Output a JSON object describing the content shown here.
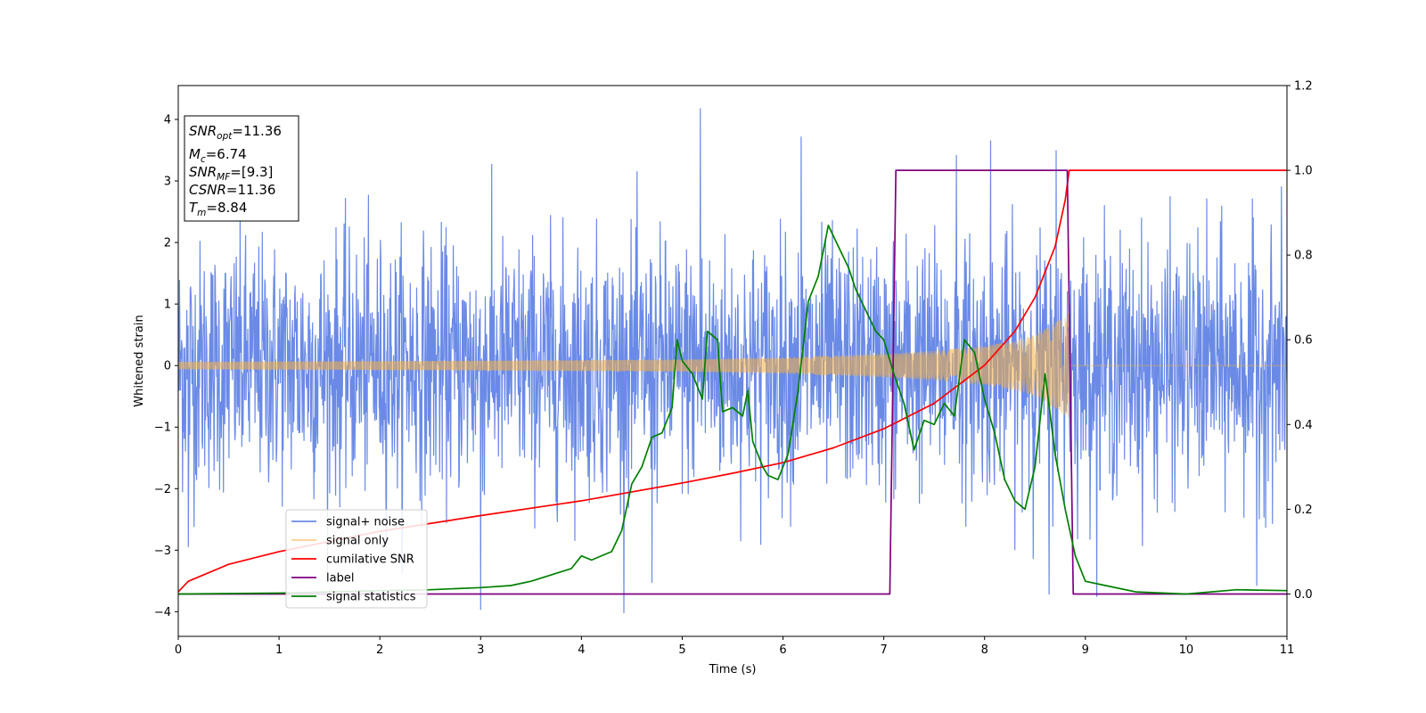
{
  "chart_data": {
    "type": "line",
    "xlabel": "Time (s)",
    "ylabel": "Whitened strain",
    "xlim": [
      0,
      11
    ],
    "ylim": [
      -4.4,
      4.55
    ],
    "ylim_right": [
      -0.1,
      1.2
    ],
    "x_ticks": [
      0,
      1,
      2,
      3,
      4,
      5,
      6,
      7,
      8,
      9,
      10,
      11
    ],
    "y_ticks": [
      -4,
      -3,
      -2,
      -1,
      0,
      1,
      2,
      3,
      4
    ],
    "y_ticks_right": [
      "0.0",
      "0.2",
      "0.4",
      "0.6",
      "0.8",
      "1.0",
      "1.2"
    ],
    "grid": false,
    "legend_position": "lower-left",
    "info_box": [
      {
        "main": "SNR",
        "sub": "opt",
        "value": "=11.36"
      },
      {
        "main": "M",
        "sub": "c",
        "value": "=6.74"
      },
      {
        "main": "SNR",
        "sub": "MF",
        "value": "=[9.3]"
      },
      {
        "main": "CSNR",
        "sub": "",
        "value": "=11.36"
      },
      {
        "main": "T",
        "sub": "m",
        "value": "=8.84"
      }
    ],
    "series": [
      {
        "name": "signal+ noise",
        "color": "#6a8ae6",
        "axis": "left",
        "noise_std": 1.0,
        "spikes": [
          [
            5.18,
            4.18
          ],
          [
            6.18,
            3.72
          ],
          [
            7.72,
            3.42
          ],
          [
            8.06,
            3.66
          ],
          [
            8.71,
            3.5
          ],
          [
            3.0,
            -3.97
          ],
          [
            4.7,
            -3.53
          ],
          [
            8.64,
            -3.72
          ],
          [
            10.7,
            -3.58
          ],
          [
            0.1,
            -2.95
          ]
        ]
      },
      {
        "name": "signal only",
        "color": "#f5b041",
        "axis": "left",
        "amplitude_envelope": {
          "x": [
            0,
            3,
            5,
            6,
            7,
            7.5,
            8,
            8.3,
            8.5,
            8.7,
            8.84
          ],
          "y": [
            0.06,
            0.08,
            0.1,
            0.13,
            0.19,
            0.24,
            0.32,
            0.4,
            0.5,
            0.7,
            0.85
          ]
        },
        "ends_at": 8.84
      },
      {
        "name": "cumilative SNR",
        "color": "#ff0000",
        "axis": "right",
        "x": [
          0,
          0.1,
          0.5,
          1,
          2,
          3,
          4,
          5,
          5.5,
          6,
          6.5,
          7,
          7.5,
          8,
          8.3,
          8.5,
          8.7,
          8.8,
          8.84,
          11
        ],
        "y": [
          0.005,
          0.03,
          0.07,
          0.1,
          0.148,
          0.185,
          0.22,
          0.262,
          0.285,
          0.31,
          0.345,
          0.39,
          0.45,
          0.54,
          0.62,
          0.7,
          0.82,
          0.93,
          1.0,
          1.0
        ]
      },
      {
        "name": "label",
        "color": "#800080",
        "axis": "right",
        "x": [
          0,
          7.06,
          7.12,
          8.82,
          8.88,
          11
        ],
        "y": [
          0,
          0,
          1,
          1,
          0,
          0
        ]
      },
      {
        "name": "signal statistics",
        "color": "#008000",
        "axis": "right",
        "x": [
          0,
          1,
          2,
          2.5,
          3,
          3.3,
          3.5,
          3.7,
          3.9,
          4.0,
          4.1,
          4.3,
          4.4,
          4.5,
          4.6,
          4.7,
          4.8,
          4.9,
          4.95,
          5.0,
          5.1,
          5.2,
          5.25,
          5.35,
          5.4,
          5.5,
          5.6,
          5.65,
          5.7,
          5.8,
          5.85,
          5.95,
          6.05,
          6.15,
          6.25,
          6.35,
          6.45,
          6.55,
          6.65,
          6.72,
          6.82,
          6.92,
          7.0,
          7.1,
          7.2,
          7.3,
          7.4,
          7.5,
          7.6,
          7.7,
          7.8,
          7.9,
          8.0,
          8.1,
          8.2,
          8.3,
          8.4,
          8.5,
          8.6,
          8.7,
          8.8,
          8.9,
          9.0,
          9.2,
          9.5,
          10,
          10.5,
          11
        ],
        "y": [
          0.0,
          0.002,
          0.008,
          0.01,
          0.015,
          0.02,
          0.03,
          0.045,
          0.06,
          0.09,
          0.08,
          0.1,
          0.15,
          0.26,
          0.3,
          0.37,
          0.38,
          0.44,
          0.6,
          0.55,
          0.52,
          0.46,
          0.62,
          0.6,
          0.43,
          0.44,
          0.42,
          0.48,
          0.36,
          0.3,
          0.28,
          0.27,
          0.33,
          0.48,
          0.69,
          0.75,
          0.87,
          0.82,
          0.77,
          0.72,
          0.67,
          0.62,
          0.6,
          0.52,
          0.45,
          0.34,
          0.41,
          0.4,
          0.45,
          0.42,
          0.6,
          0.57,
          0.46,
          0.38,
          0.27,
          0.22,
          0.2,
          0.3,
          0.52,
          0.33,
          0.2,
          0.09,
          0.03,
          0.02,
          0.005,
          0.0,
          0.01,
          0.008
        ]
      }
    ]
  }
}
